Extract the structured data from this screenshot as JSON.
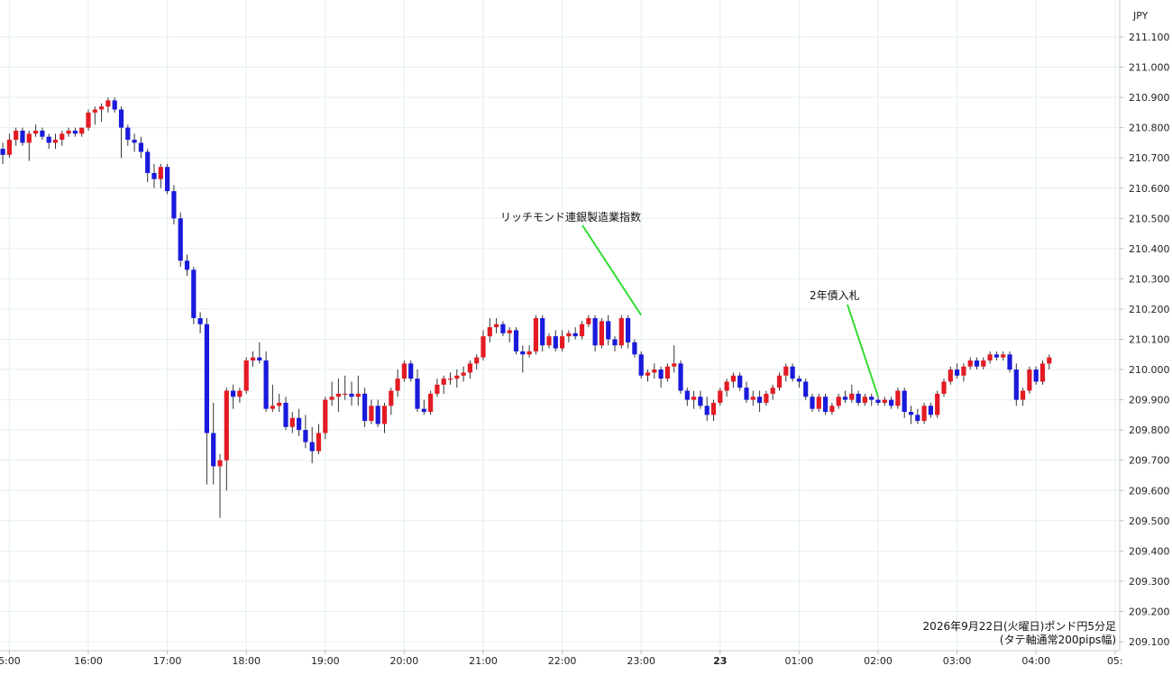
{
  "chart_data": {
    "type": "candlestick",
    "currency": "JPY",
    "caption_line1": "2026年9月22日(火曜日)ポンド円5分足",
    "caption_line2": "(タテ軸通常200pips幅)",
    "ylim": [
      209.1,
      211.1
    ],
    "y_ticks": [
      "211.100",
      "211.000",
      "210.900",
      "210.800",
      "210.700",
      "210.600",
      "210.500",
      "210.400",
      "210.300",
      "210.200",
      "210.100",
      "210.000",
      "209.900",
      "209.800",
      "209.700",
      "209.600",
      "209.500",
      "209.400",
      "209.300",
      "209.200",
      "209.100"
    ],
    "x_ticks": [
      {
        "label": "5:00",
        "bar": -12,
        "bold": false
      },
      {
        "label": "16:00",
        "bar": 0,
        "bold": false
      },
      {
        "label": "17:00",
        "bar": 12,
        "bold": false
      },
      {
        "label": "18:00",
        "bar": 24,
        "bold": false
      },
      {
        "label": "19:00",
        "bar": 36,
        "bold": false
      },
      {
        "label": "20:00",
        "bar": 48,
        "bold": false
      },
      {
        "label": "21:00",
        "bar": 60,
        "bold": false
      },
      {
        "label": "22:00",
        "bar": 72,
        "bold": false
      },
      {
        "label": "23:00",
        "bar": 84,
        "bold": false
      },
      {
        "label": "23",
        "bar": 96,
        "bold": true
      },
      {
        "label": "01:00",
        "bar": 108,
        "bold": false
      },
      {
        "label": "02:00",
        "bar": 120,
        "bold": false
      },
      {
        "label": "03:00",
        "bar": 132,
        "bold": false
      },
      {
        "label": "04:00",
        "bar": 144,
        "bold": false
      },
      {
        "label": "05:",
        "bar": 156,
        "bold": false
      }
    ],
    "first_bar_index": -13,
    "bar_colors": {
      "up": "#e31b23",
      "down": "#1a1adc",
      "wick": "#333333"
    },
    "candles": [
      [
        210.73,
        210.75,
        210.68,
        210.71
      ],
      [
        210.71,
        210.78,
        210.7,
        210.76
      ],
      [
        210.76,
        210.8,
        210.74,
        210.79
      ],
      [
        210.79,
        210.8,
        210.74,
        210.75
      ],
      [
        210.75,
        210.79,
        210.69,
        210.78
      ],
      [
        210.78,
        210.81,
        210.77,
        210.79
      ],
      [
        210.79,
        210.8,
        210.76,
        210.77
      ],
      [
        210.77,
        210.78,
        210.73,
        210.75
      ],
      [
        210.75,
        210.78,
        210.73,
        210.76
      ],
      [
        210.76,
        210.79,
        210.74,
        210.78
      ],
      [
        210.78,
        210.8,
        210.77,
        210.79
      ],
      [
        210.79,
        210.8,
        210.77,
        210.78
      ],
      [
        210.78,
        210.8,
        210.77,
        210.8
      ],
      [
        210.8,
        210.86,
        210.79,
        210.85
      ],
      [
        210.85,
        210.87,
        210.81,
        210.86
      ],
      [
        210.86,
        210.88,
        210.82,
        210.87
      ],
      [
        210.87,
        210.9,
        210.85,
        210.89
      ],
      [
        210.89,
        210.9,
        210.85,
        210.86
      ],
      [
        210.86,
        210.87,
        210.7,
        210.8
      ],
      [
        210.8,
        210.81,
        210.74,
        210.76
      ],
      [
        210.76,
        210.78,
        210.72,
        210.75
      ],
      [
        210.75,
        210.77,
        210.7,
        210.72
      ],
      [
        210.72,
        210.73,
        210.62,
        210.65
      ],
      [
        210.65,
        210.68,
        210.6,
        210.63
      ],
      [
        210.63,
        210.68,
        210.6,
        210.67
      ],
      [
        210.67,
        210.68,
        210.58,
        210.59
      ],
      [
        210.59,
        210.61,
        210.48,
        210.5
      ],
      [
        210.5,
        210.52,
        210.34,
        210.36
      ],
      [
        210.36,
        210.38,
        210.31,
        210.33
      ],
      [
        210.33,
        210.34,
        210.15,
        210.17
      ],
      [
        210.17,
        210.19,
        210.12,
        210.15
      ],
      [
        210.15,
        210.17,
        209.62,
        209.79
      ],
      [
        209.79,
        209.89,
        209.62,
        209.68
      ],
      [
        209.68,
        209.72,
        209.51,
        209.7
      ],
      [
        209.7,
        209.94,
        209.6,
        209.93
      ],
      [
        209.93,
        209.95,
        209.87,
        209.91
      ],
      [
        209.91,
        209.94,
        209.89,
        209.93
      ],
      [
        209.93,
        210.04,
        209.92,
        210.03
      ],
      [
        210.03,
        210.06,
        210.01,
        210.04
      ],
      [
        210.04,
        210.09,
        210.02,
        210.03
      ],
      [
        210.03,
        210.06,
        209.86,
        209.87
      ],
      [
        209.87,
        209.95,
        209.86,
        209.88
      ],
      [
        209.88,
        209.92,
        209.86,
        209.89
      ],
      [
        209.89,
        209.91,
        209.8,
        209.81
      ],
      [
        209.81,
        209.86,
        209.79,
        209.84
      ],
      [
        209.84,
        209.87,
        209.78,
        209.8
      ],
      [
        209.8,
        209.85,
        209.74,
        209.76
      ],
      [
        209.76,
        209.81,
        209.69,
        209.73
      ],
      [
        209.73,
        209.82,
        209.72,
        209.79
      ],
      [
        209.79,
        209.91,
        209.77,
        209.9
      ],
      [
        209.9,
        209.96,
        209.88,
        209.91
      ],
      [
        209.91,
        209.97,
        209.86,
        209.92
      ],
      [
        209.92,
        209.98,
        209.9,
        209.92
      ],
      [
        209.92,
        209.96,
        209.88,
        209.91
      ],
      [
        209.91,
        209.98,
        209.88,
        209.92
      ],
      [
        209.92,
        209.94,
        209.81,
        209.83
      ],
      [
        209.83,
        209.9,
        209.82,
        209.88
      ],
      [
        209.88,
        209.9,
        209.81,
        209.82
      ],
      [
        209.82,
        209.89,
        209.79,
        209.88
      ],
      [
        209.88,
        209.94,
        209.85,
        209.93
      ],
      [
        209.93,
        210.0,
        209.91,
        209.97
      ],
      [
        209.97,
        210.03,
        209.96,
        210.02
      ],
      [
        210.02,
        210.03,
        209.96,
        209.97
      ],
      [
        209.97,
        210.0,
        209.86,
        209.87
      ],
      [
        209.87,
        209.9,
        209.85,
        209.86
      ],
      [
        209.86,
        209.93,
        209.85,
        209.92
      ],
      [
        209.92,
        209.97,
        209.91,
        209.95
      ],
      [
        209.95,
        209.98,
        209.92,
        209.97
      ],
      [
        209.97,
        209.99,
        209.95,
        209.97
      ],
      [
        209.97,
        210.0,
        209.94,
        209.98
      ],
      [
        209.98,
        210.01,
        209.96,
        209.99
      ],
      [
        209.99,
        210.03,
        209.97,
        210.02
      ],
      [
        210.02,
        210.05,
        210.0,
        210.04
      ],
      [
        210.04,
        210.13,
        210.03,
        210.11
      ],
      [
        210.11,
        210.17,
        210.09,
        210.14
      ],
      [
        210.14,
        210.17,
        210.12,
        210.15
      ],
      [
        210.15,
        210.16,
        210.11,
        210.12
      ],
      [
        210.12,
        210.14,
        210.09,
        210.13
      ],
      [
        210.13,
        210.14,
        210.05,
        210.06
      ],
      [
        210.06,
        210.08,
        209.99,
        210.05
      ],
      [
        210.05,
        210.08,
        210.04,
        210.06
      ],
      [
        210.06,
        210.18,
        210.05,
        210.17
      ],
      [
        210.17,
        210.18,
        210.06,
        210.08
      ],
      [
        210.08,
        210.12,
        210.07,
        210.11
      ],
      [
        210.11,
        210.13,
        210.06,
        210.07
      ],
      [
        210.07,
        210.13,
        210.06,
        210.11
      ],
      [
        210.11,
        210.13,
        210.09,
        210.12
      ],
      [
        210.12,
        210.14,
        210.1,
        210.11
      ],
      [
        210.11,
        210.16,
        210.1,
        210.15
      ],
      [
        210.15,
        210.18,
        210.14,
        210.17
      ],
      [
        210.17,
        210.18,
        210.06,
        210.08
      ],
      [
        210.08,
        210.17,
        210.07,
        210.16
      ],
      [
        210.16,
        210.18,
        210.08,
        210.1
      ],
      [
        210.1,
        210.11,
        210.06,
        210.08
      ],
      [
        210.08,
        210.18,
        210.07,
        210.17
      ],
      [
        210.17,
        210.18,
        210.07,
        210.09
      ],
      [
        210.09,
        210.1,
        210.04,
        210.05
      ],
      [
        210.05,
        210.06,
        209.97,
        209.98
      ],
      [
        209.98,
        210.0,
        209.96,
        209.99
      ],
      [
        209.99,
        210.02,
        209.97,
        210.0
      ],
      [
        210.0,
        210.01,
        209.94,
        209.97
      ],
      [
        209.97,
        210.02,
        209.96,
        210.01
      ],
      [
        210.01,
        210.08,
        209.99,
        210.02
      ],
      [
        210.02,
        210.03,
        209.92,
        209.93
      ],
      [
        209.93,
        209.94,
        209.88,
        209.9
      ],
      [
        209.9,
        209.93,
        209.87,
        209.91
      ],
      [
        209.91,
        209.93,
        209.87,
        209.88
      ],
      [
        209.88,
        209.91,
        209.83,
        209.85
      ],
      [
        209.85,
        209.9,
        209.83,
        209.89
      ],
      [
        209.89,
        209.94,
        209.88,
        209.93
      ],
      [
        209.93,
        209.97,
        209.91,
        209.96
      ],
      [
        209.96,
        209.99,
        209.94,
        209.98
      ],
      [
        209.98,
        209.99,
        209.93,
        209.94
      ],
      [
        209.94,
        209.96,
        209.89,
        209.9
      ],
      [
        209.9,
        209.93,
        209.88,
        209.91
      ],
      [
        209.91,
        209.93,
        209.86,
        209.89
      ],
      [
        209.89,
        209.93,
        209.88,
        209.92
      ],
      [
        209.92,
        209.95,
        209.9,
        209.94
      ],
      [
        209.94,
        209.99,
        209.93,
        209.98
      ],
      [
        209.98,
        210.02,
        209.96,
        210.01
      ],
      [
        210.01,
        210.02,
        209.96,
        209.97
      ],
      [
        209.97,
        209.98,
        209.94,
        209.96
      ],
      [
        209.96,
        209.97,
        209.9,
        209.91
      ],
      [
        209.91,
        209.92,
        209.86,
        209.87
      ],
      [
        209.87,
        209.92,
        209.86,
        209.91
      ],
      [
        209.91,
        209.92,
        209.85,
        209.86
      ],
      [
        209.86,
        209.89,
        209.85,
        209.88
      ],
      [
        209.88,
        209.92,
        209.87,
        209.91
      ],
      [
        209.91,
        209.93,
        209.89,
        209.9
      ],
      [
        209.9,
        209.95,
        209.89,
        209.92
      ],
      [
        209.92,
        209.93,
        209.88,
        209.89
      ],
      [
        209.89,
        209.92,
        209.88,
        209.91
      ],
      [
        209.91,
        209.92,
        209.88,
        209.9
      ],
      [
        209.9,
        209.91,
        209.88,
        209.89
      ],
      [
        209.89,
        209.91,
        209.88,
        209.9
      ],
      [
        209.9,
        209.91,
        209.87,
        209.88
      ],
      [
        209.88,
        209.94,
        209.87,
        209.93
      ],
      [
        209.93,
        209.94,
        209.84,
        209.86
      ],
      [
        209.86,
        209.88,
        209.82,
        209.85
      ],
      [
        209.85,
        209.87,
        209.82,
        209.83
      ],
      [
        209.83,
        209.89,
        209.82,
        209.88
      ],
      [
        209.88,
        209.89,
        209.84,
        209.85
      ],
      [
        209.85,
        209.93,
        209.84,
        209.92
      ],
      [
        209.92,
        209.97,
        209.91,
        209.96
      ],
      [
        209.96,
        210.01,
        209.95,
        210.0
      ],
      [
        210.0,
        210.02,
        209.97,
        209.98
      ],
      [
        209.98,
        210.02,
        209.96,
        210.01
      ],
      [
        210.01,
        210.04,
        210.0,
        210.03
      ],
      [
        210.03,
        210.04,
        210.0,
        210.01
      ],
      [
        210.01,
        210.04,
        210.0,
        210.03
      ],
      [
        210.03,
        210.06,
        210.02,
        210.05
      ],
      [
        210.05,
        210.06,
        210.03,
        210.04
      ],
      [
        210.04,
        210.06,
        210.03,
        210.05
      ],
      [
        210.05,
        210.06,
        209.99,
        210.0
      ],
      [
        210.0,
        210.02,
        209.88,
        209.9
      ],
      [
        209.9,
        209.94,
        209.88,
        209.93
      ],
      [
        209.93,
        210.01,
        209.92,
        210.0
      ],
      [
        210.0,
        210.01,
        209.95,
        209.96
      ],
      [
        209.96,
        210.03,
        209.95,
        210.02
      ],
      [
        210.02,
        210.05,
        210.0,
        210.04
      ]
    ],
    "annotations": [
      {
        "label": "リッチモンド連銀製造業指数",
        "bar": 84,
        "price": 210.18
      },
      {
        "label": "2年債入札",
        "bar": 120,
        "price": 209.91
      }
    ]
  }
}
